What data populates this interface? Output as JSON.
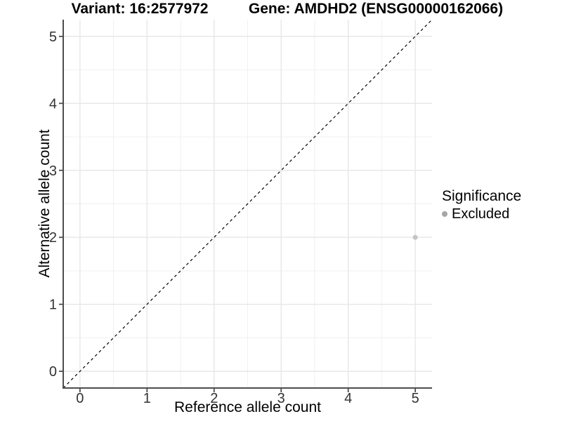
{
  "header": {
    "variant_title": "Variant: 16:2577972",
    "gene_title": "Gene: AMDHD2 (ENSG00000162066)"
  },
  "chart_data": {
    "type": "scatter",
    "xlabel": "Reference allele count",
    "ylabel": "Alternative allele count",
    "xlim": [
      -0.25,
      5.25
    ],
    "ylim": [
      -0.25,
      5.25
    ],
    "x_ticks": [
      0,
      1,
      2,
      3,
      4,
      5
    ],
    "y_ticks": [
      0,
      1,
      2,
      3,
      4,
      5
    ],
    "x_minor_ticks": [
      0.5,
      1.5,
      2.5,
      3.5,
      4.5
    ],
    "y_minor_ticks": [
      0.5,
      1.5,
      2.5,
      3.5,
      4.5
    ],
    "grid": "major and minor, light gray on white panel",
    "reference_line": {
      "slope": 1,
      "intercept": 0,
      "style": "dashed",
      "color": "#000000"
    },
    "series": [
      {
        "name": "Excluded",
        "color": "#c4c4c4",
        "points": [
          {
            "x": 5,
            "y": 2
          }
        ]
      }
    ],
    "legend": {
      "position": "right",
      "title": "Significance",
      "items": [
        {
          "label": "Excluded",
          "color": "#a6a6a6",
          "marker": "circle"
        }
      ]
    },
    "colors": {
      "axis_line": "#4d4d4d",
      "tick_label": "#333333",
      "grid_major": "#e7e7e7",
      "grid_minor": "#f0f0f0",
      "title_text": "#000000"
    }
  }
}
